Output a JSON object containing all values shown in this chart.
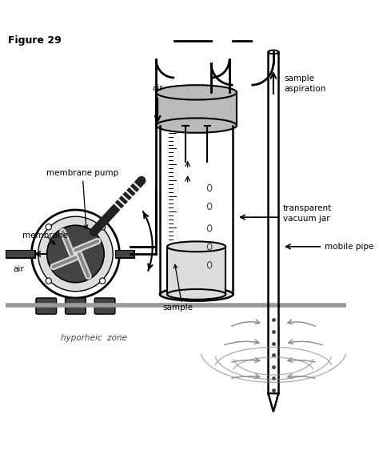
{
  "title": "Figure 29",
  "bg_color": "#ffffff",
  "labels": {
    "membrane_pump": "membrane pump",
    "membrane": "membrane",
    "air_left": "air",
    "air_top": "air",
    "sample": "sample",
    "transparent_vacuum_jar": "transparent\nvacuum jar",
    "mobile_pipe": "mobile pipe",
    "sample_aspiration": "sample\naspiration",
    "hyporheic_zone": "hyporheic  zone"
  },
  "colors": {
    "black": "#000000",
    "dark_gray": "#444444",
    "mid_gray": "#888888",
    "light_gray": "#bbbbbb",
    "lighter_gray": "#dddddd",
    "pump_body": "#222222",
    "ground": "#999999"
  }
}
